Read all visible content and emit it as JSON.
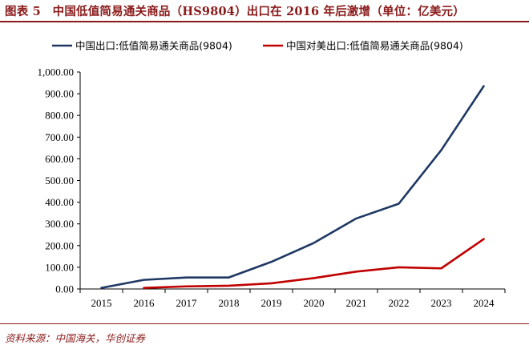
{
  "figure": {
    "title": "图表 5　中国低值简易通关商品（HS9804）出口在 2016 年后激增（单位：亿美元）",
    "source": "资料来源：中国海关，华创证券"
  },
  "colors": {
    "accent": "#8b1a1a",
    "series_china": "#1f3864",
    "series_us": "#c00000"
  },
  "chart_data": {
    "type": "line",
    "title": "",
    "xlabel": "",
    "ylabel": "",
    "categories": [
      "2015",
      "2016",
      "2017",
      "2018",
      "2019",
      "2020",
      "2021",
      "2022",
      "2023",
      "2024"
    ],
    "ylim": [
      0,
      1000
    ],
    "yticks": [
      0,
      100,
      200,
      300,
      400,
      500,
      600,
      700,
      800,
      900,
      1000
    ],
    "ytick_labels": [
      "0.00",
      "100.00",
      "200.00",
      "300.00",
      "400.00",
      "500.00",
      "600.00",
      "700.00",
      "800.00",
      "900.00",
      "1,000.00"
    ],
    "grid": false,
    "legend_position": "top",
    "series": [
      {
        "name": "中国出口:低值简易通关商品(9804)",
        "color": "#1f3864",
        "values": [
          5,
          42,
          53,
          53,
          125,
          212,
          325,
          393,
          640,
          935
        ]
      },
      {
        "name": "中国对美出口:低值简易通关商品(9804)",
        "color": "#c00000",
        "values": [
          null,
          5,
          12,
          15,
          26,
          50,
          80,
          100,
          95,
          230
        ]
      }
    ]
  }
}
